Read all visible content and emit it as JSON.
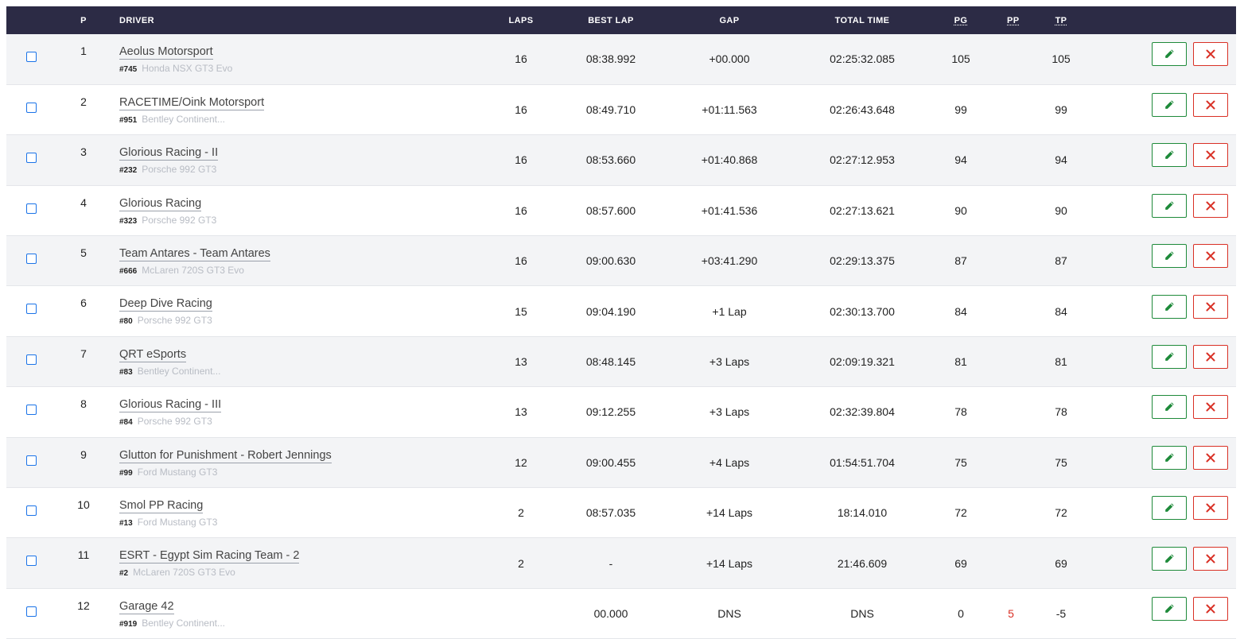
{
  "headers": {
    "p": "P",
    "driver": "DRIVER",
    "laps": "LAPS",
    "best_lap": "BEST LAP",
    "gap": "GAP",
    "total_time": "TOTAL TIME",
    "pg": "PG",
    "pp": "PP",
    "tp": "TP"
  },
  "rows": [
    {
      "pos": "1",
      "team": "Aeolus Motorsport",
      "num": "#745",
      "car": "Honda NSX GT3 Evo",
      "laps": "16",
      "best": "08:38.992",
      "gap": "+00.000",
      "total": "02:25:32.085",
      "pg": "105",
      "pp": "",
      "tp": "105"
    },
    {
      "pos": "2",
      "team": "RACETIME/Oink Motorsport",
      "num": "#951",
      "car": "Bentley Continent...",
      "laps": "16",
      "best": "08:49.710",
      "gap": "+01:11.563",
      "total": "02:26:43.648",
      "pg": "99",
      "pp": "",
      "tp": "99"
    },
    {
      "pos": "3",
      "team": "Glorious Racing - II",
      "num": "#232",
      "car": "Porsche 992 GT3",
      "laps": "16",
      "best": "08:53.660",
      "gap": "+01:40.868",
      "total": "02:27:12.953",
      "pg": "94",
      "pp": "",
      "tp": "94"
    },
    {
      "pos": "4",
      "team": "Glorious Racing",
      "num": "#323",
      "car": "Porsche 992 GT3",
      "laps": "16",
      "best": "08:57.600",
      "gap": "+01:41.536",
      "total": "02:27:13.621",
      "pg": "90",
      "pp": "",
      "tp": "90"
    },
    {
      "pos": "5",
      "team": "Team Antares - Team Antares",
      "num": "#666",
      "car": "McLaren 720S GT3 Evo",
      "laps": "16",
      "best": "09:00.630",
      "gap": "+03:41.290",
      "total": "02:29:13.375",
      "pg": "87",
      "pp": "",
      "tp": "87"
    },
    {
      "pos": "6",
      "team": "Deep Dive Racing",
      "num": "#80",
      "car": "Porsche 992 GT3",
      "laps": "15",
      "best": "09:04.190",
      "gap": "+1 Lap",
      "total": "02:30:13.700",
      "pg": "84",
      "pp": "",
      "tp": "84"
    },
    {
      "pos": "7",
      "team": "QRT eSports",
      "num": "#83",
      "car": "Bentley Continent...",
      "laps": "13",
      "best": "08:48.145",
      "gap": "+3 Laps",
      "total": "02:09:19.321",
      "pg": "81",
      "pp": "",
      "tp": "81"
    },
    {
      "pos": "8",
      "team": "Glorious Racing - III",
      "num": "#84",
      "car": "Porsche 992 GT3",
      "laps": "13",
      "best": "09:12.255",
      "gap": "+3 Laps",
      "total": "02:32:39.804",
      "pg": "78",
      "pp": "",
      "tp": "78"
    },
    {
      "pos": "9",
      "team": "Glutton for Punishment - Robert Jennings",
      "num": "#99",
      "car": "Ford Mustang GT3",
      "laps": "12",
      "best": "09:00.455",
      "gap": "+4 Laps",
      "total": "01:54:51.704",
      "pg": "75",
      "pp": "",
      "tp": "75"
    },
    {
      "pos": "10",
      "team": "Smol PP Racing",
      "num": "#13",
      "car": "Ford Mustang GT3",
      "laps": "2",
      "best": "08:57.035",
      "gap": "+14 Laps",
      "total": "18:14.010",
      "pg": "72",
      "pp": "",
      "tp": "72"
    },
    {
      "pos": "11",
      "team": "ESRT - Egypt Sim Racing Team - 2",
      "num": "#2",
      "car": "McLaren 720S GT3 Evo",
      "laps": "2",
      "best": "-",
      "gap": "+14 Laps",
      "total": "21:46.609",
      "pg": "69",
      "pp": "",
      "tp": "69"
    },
    {
      "pos": "12",
      "team": "Garage 42",
      "num": "#919",
      "car": "Bentley Continent...",
      "laps": "",
      "best": "00.000",
      "gap": "DNS",
      "total": "DNS",
      "pg": "0",
      "pp": "5",
      "tp": "-5"
    }
  ],
  "icons": {
    "edit": "pencil-icon",
    "delete": "x-icon"
  },
  "colors": {
    "header_bg": "#2c2b45",
    "edit": "#1e8a3a",
    "delete": "#d93025",
    "penalty": "#d93025"
  }
}
